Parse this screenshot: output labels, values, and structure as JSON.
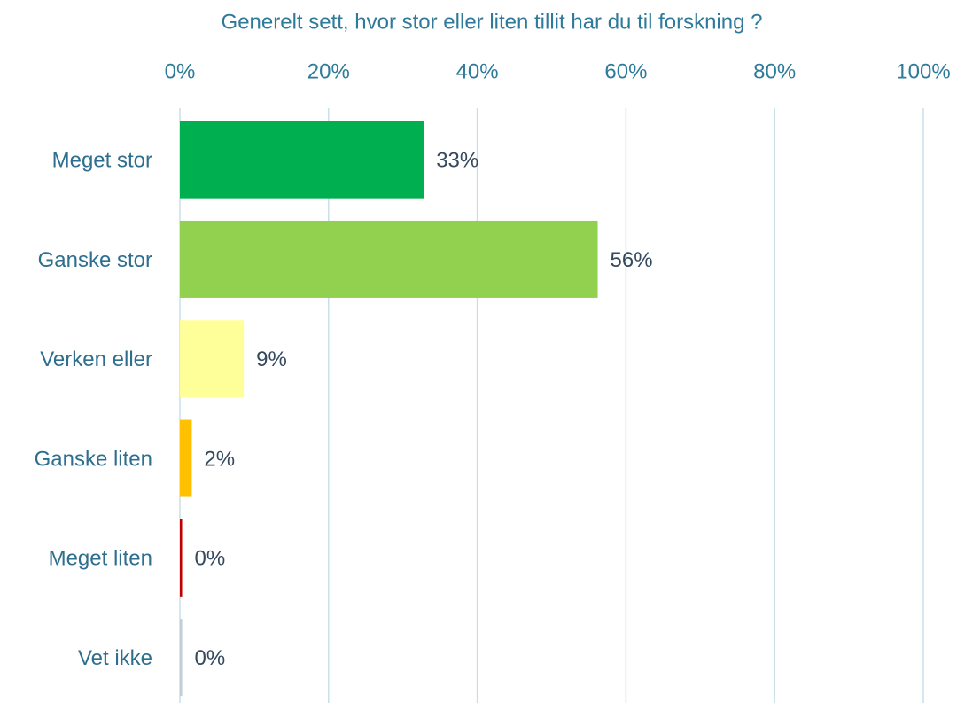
{
  "chart_data": {
    "type": "barh",
    "title": "Generelt sett, hvor stor eller liten tillit har du til forskning ?",
    "categories": [
      "Meget stor",
      "Ganske stor",
      "Verken eller",
      "Ganske liten",
      "Meget liten",
      "Vet ikke"
    ],
    "values": [
      32.8,
      56.2,
      8.6,
      1.6,
      0.3,
      0.3
    ],
    "value_labels": [
      "33%",
      "56%",
      "9%",
      "2%",
      "0%",
      "0%"
    ],
    "colors": [
      "#00b050",
      "#92d050",
      "#ffff99",
      "#ffc000",
      "#c00000",
      "#bfcfd6"
    ],
    "xlim": [
      0,
      100
    ],
    "xticks": [
      {
        "value": 0,
        "label": "0%"
      },
      {
        "value": 20,
        "label": "20%"
      },
      {
        "value": 40,
        "label": "40%"
      },
      {
        "value": 60,
        "label": "60%"
      },
      {
        "value": 80,
        "label": "80%"
      },
      {
        "value": 100,
        "label": "100%"
      }
    ],
    "grid": true
  }
}
